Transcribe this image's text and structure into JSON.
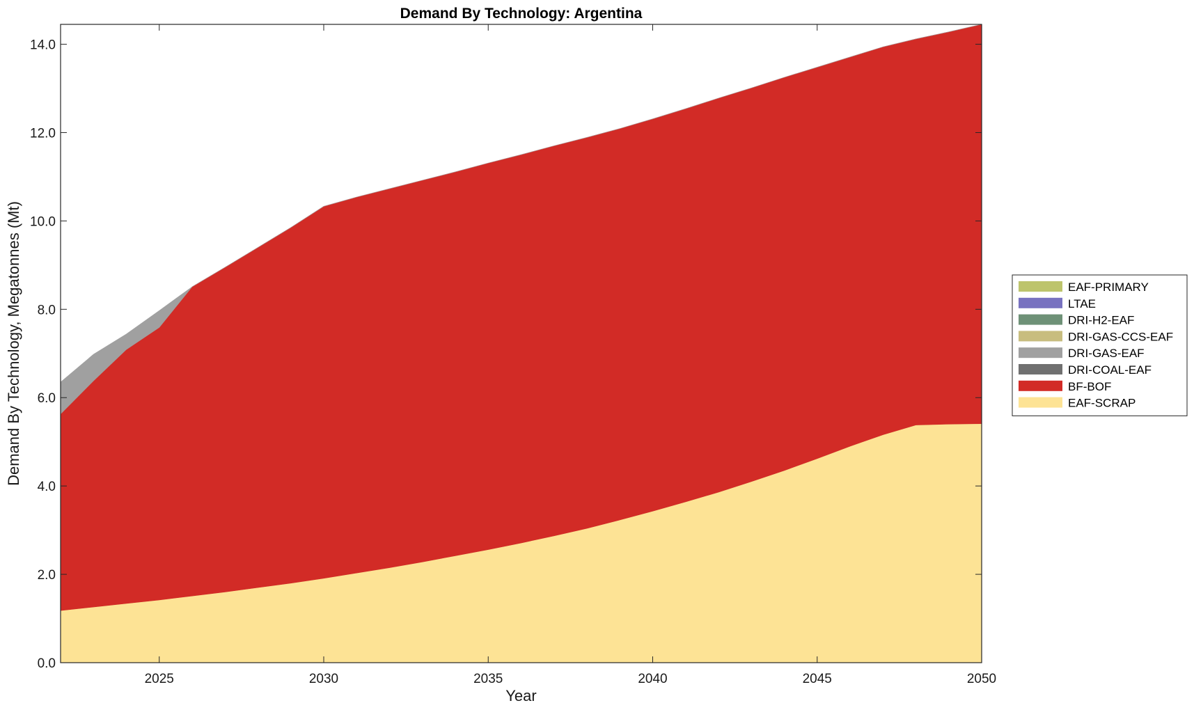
{
  "chart_data": {
    "type": "area",
    "stacked": true,
    "title": "Demand By Technology: Argentina",
    "xlabel": "Year",
    "ylabel": "Demand By Technology, Megatonnes (Mt)",
    "xlim": [
      2022,
      2050
    ],
    "ylim": [
      0,
      14.45
    ],
    "x_ticks": [
      2025,
      2030,
      2035,
      2040,
      2045,
      2050
    ],
    "y_ticks": [
      0,
      2,
      4,
      6,
      8,
      10,
      12,
      14
    ],
    "y_tick_labels": [
      "0.0",
      "2.0",
      "4.0",
      "6.0",
      "8.0",
      "10.0",
      "12.0",
      "14.0"
    ],
    "grid": false,
    "legend_position": "right",
    "x": [
      2022,
      2023,
      2024,
      2025,
      2026,
      2027,
      2028,
      2029,
      2030,
      2031,
      2032,
      2033,
      2034,
      2035,
      2036,
      2037,
      2038,
      2039,
      2040,
      2041,
      2042,
      2043,
      2044,
      2045,
      2046,
      2047,
      2048,
      2049,
      2050
    ],
    "series": [
      {
        "name": "EAF-SCRAP",
        "color": "#fde395",
        "values": [
          1.18,
          1.26,
          1.34,
          1.42,
          1.51,
          1.6,
          1.7,
          1.8,
          1.91,
          2.03,
          2.15,
          2.28,
          2.42,
          2.56,
          2.71,
          2.87,
          3.04,
          3.23,
          3.43,
          3.64,
          3.86,
          4.1,
          4.35,
          4.62,
          4.9,
          5.16,
          5.38,
          5.4,
          5.41
        ]
      },
      {
        "name": "BF-BOF",
        "color": "#d22b26",
        "values": [
          4.45,
          5.12,
          5.75,
          6.17,
          7.0,
          7.35,
          7.7,
          8.05,
          8.42,
          8.51,
          8.58,
          8.64,
          8.69,
          8.75,
          8.79,
          8.83,
          8.85,
          8.86,
          8.88,
          8.9,
          8.92,
          8.91,
          8.9,
          8.86,
          8.81,
          8.78,
          8.74,
          8.88,
          9.04
        ]
      },
      {
        "name": "DRI-COAL-EAF",
        "color": "#707070",
        "values": [
          0,
          0,
          0,
          0,
          0,
          0,
          0,
          0,
          0,
          0,
          0,
          0,
          0,
          0,
          0,
          0,
          0,
          0,
          0,
          0,
          0,
          0,
          0,
          0,
          0,
          0,
          0,
          0,
          0
        ]
      },
      {
        "name": "DRI-GAS-EAF",
        "color": "#a0a0a0",
        "values": [
          0.72,
          0.6,
          0.35,
          0.38,
          0,
          0,
          0,
          0,
          0,
          0,
          0,
          0,
          0,
          0,
          0,
          0,
          0,
          0,
          0,
          0,
          0,
          0,
          0,
          0,
          0,
          0,
          0,
          0,
          0
        ]
      },
      {
        "name": "DRI-GAS-CCS-EAF",
        "color": "#c8bd7f",
        "values": [
          0,
          0,
          0,
          0,
          0,
          0,
          0,
          0,
          0,
          0,
          0,
          0,
          0,
          0,
          0,
          0,
          0,
          0,
          0,
          0,
          0,
          0,
          0,
          0,
          0,
          0,
          0,
          0,
          0
        ]
      },
      {
        "name": "DRI-H2-EAF",
        "color": "#6e9177",
        "values": [
          0,
          0,
          0,
          0,
          0,
          0,
          0,
          0,
          0,
          0,
          0,
          0,
          0,
          0,
          0,
          0,
          0,
          0,
          0,
          0,
          0,
          0,
          0,
          0,
          0,
          0,
          0,
          0,
          0
        ]
      },
      {
        "name": "LTAE",
        "color": "#7872c0",
        "values": [
          0,
          0,
          0,
          0,
          0,
          0,
          0,
          0,
          0,
          0,
          0,
          0,
          0,
          0,
          0,
          0,
          0,
          0,
          0,
          0,
          0,
          0,
          0,
          0,
          0,
          0,
          0,
          0,
          0
        ]
      },
      {
        "name": "EAF-PRIMARY",
        "color": "#bdc46c",
        "values": [
          0,
          0,
          0,
          0,
          0,
          0,
          0,
          0,
          0,
          0,
          0,
          0,
          0,
          0,
          0,
          0,
          0,
          0,
          0,
          0,
          0,
          0,
          0,
          0,
          0,
          0,
          0,
          0,
          0
        ]
      }
    ]
  }
}
